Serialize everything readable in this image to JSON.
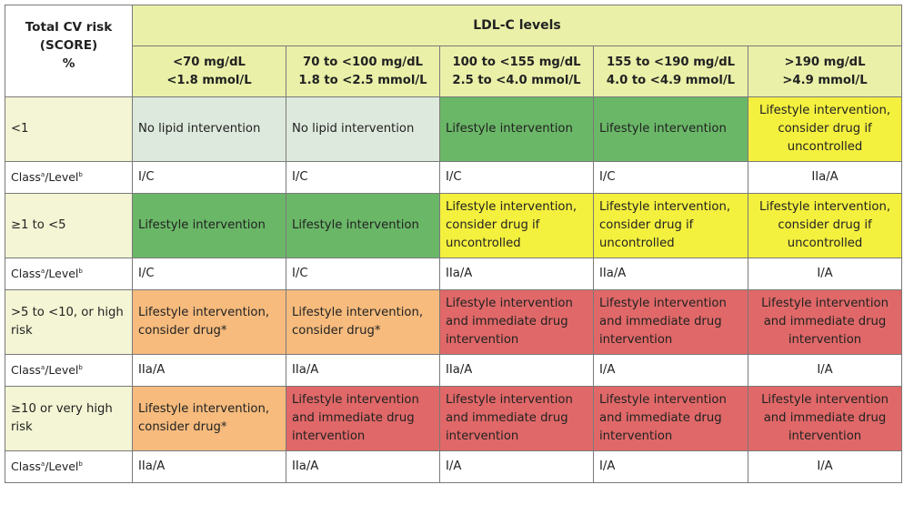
{
  "header": {
    "corner_lines": [
      "Total CV risk",
      "(SCORE)",
      "%"
    ],
    "ldl_title": "LDL-C levels",
    "columns": [
      {
        "line1": "<70 mg/dL",
        "line2": "<1.8 mmol/L"
      },
      {
        "line1": "70 to <100 mg/dL",
        "line2": "1.8 to <2.5 mmol/L"
      },
      {
        "line1": "100 to <155 mg/dL",
        "line2": "2.5 to <4.0 mmol/L"
      },
      {
        "line1": "155 to <190 mg/dL",
        "line2": "4.0 to <4.9 mmol/L"
      },
      {
        "line1": ">190 mg/dL",
        "line2": ">4.9 mmol/L"
      }
    ]
  },
  "class_label": {
    "class": "Class",
    "a": "a",
    "sep": "/Level",
    "b": "b"
  },
  "colors": {
    "header_bg": "#eaf0a8",
    "risk_bg": "#f3f5d4",
    "no_intervention": "#dde9dc",
    "lifestyle": "#6ab767",
    "consider_drug_if_uncontrolled": "#f4f03e",
    "consider_drug": "#f6bb7d",
    "immediate_drug": "#e06868"
  },
  "rows": [
    {
      "risk": "<1",
      "cells": [
        {
          "text": "No lipid intervention",
          "color": "light"
        },
        {
          "text": "No lipid intervention",
          "color": "light"
        },
        {
          "text": "Lifestyle intervention",
          "color": "green"
        },
        {
          "text": "Lifestyle intervention",
          "color": "green"
        },
        {
          "text": "Lifestyle intervention,\nconsider drug if\nuncontrolled",
          "color": "yellow"
        }
      ],
      "classes": [
        "I/C",
        "I/C",
        "I/C",
        "I/C",
        "IIa/A"
      ]
    },
    {
      "risk": "≥1 to <5",
      "cells": [
        {
          "text": "Lifestyle intervention",
          "color": "green"
        },
        {
          "text": "Lifestyle intervention",
          "color": "green"
        },
        {
          "text": "Lifestyle intervention,\nconsider drug if\nuncontrolled",
          "color": "yellow"
        },
        {
          "text": "Lifestyle intervention,\nconsider drug if\nuncontrolled",
          "color": "yellow"
        },
        {
          "text": "Lifestyle intervention,\nconsider drug if\nuncontrolled",
          "color": "yellow"
        }
      ],
      "classes": [
        "I/C",
        "I/C",
        "IIa/A",
        "IIa/A",
        "I/A"
      ]
    },
    {
      "risk": ">5 to <10, or high\nrisk",
      "cells": [
        {
          "text": "Lifestyle intervention,\nconsider drug*",
          "color": "orange"
        },
        {
          "text": "Lifestyle intervention,\nconsider drug*",
          "color": "orange"
        },
        {
          "text": "Lifestyle intervention\nand immediate drug\nintervention",
          "color": "red"
        },
        {
          "text": "Lifestyle intervention\nand immediate drug\nintervention",
          "color": "red"
        },
        {
          "text": "Lifestyle intervention\nand immediate drug\nintervention",
          "color": "red"
        }
      ],
      "classes": [
        "IIa/A",
        "IIa/A",
        "IIa/A",
        "I/A",
        "I/A"
      ]
    },
    {
      "risk": "≥10 or very high\nrisk",
      "cells": [
        {
          "text": "Lifestyle intervention,\nconsider drug*",
          "color": "orange"
        },
        {
          "text": "Lifestyle intervention\nand immediate drug\nintervention",
          "color": "red"
        },
        {
          "text": "Lifestyle intervention\nand immediate drug\nintervention",
          "color": "red"
        },
        {
          "text": "Lifestyle intervention\nand immediate drug\nintervention",
          "color": "red"
        },
        {
          "text": "Lifestyle intervention\nand immediate drug\nintervention",
          "color": "red"
        }
      ],
      "classes": [
        "IIa/A",
        "IIa/A",
        "I/A",
        "I/A",
        "I/A"
      ]
    }
  ]
}
